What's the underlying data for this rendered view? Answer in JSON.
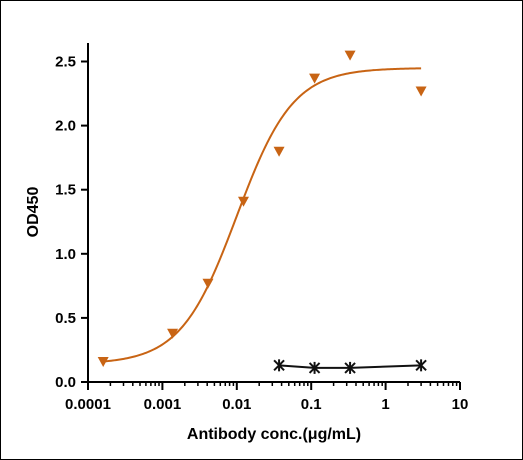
{
  "chart_data": {
    "type": "scatter",
    "xlabel": "Antibody conc.(μg/mL)",
    "ylabel": "OD450",
    "xscale": "log",
    "xlim": [
      0.0001,
      10
    ],
    "ylim": [
      0,
      2.7
    ],
    "xticks": [
      {
        "value": 0.0001,
        "label": "0.0001"
      },
      {
        "value": 0.001,
        "label": "0.001"
      },
      {
        "value": 0.01,
        "label": "0.01"
      },
      {
        "value": 0.1,
        "label": "0.1"
      },
      {
        "value": 1,
        "label": "1"
      },
      {
        "value": 10,
        "label": "10"
      }
    ],
    "yticks": [
      {
        "value": 0.0,
        "label": "0.0"
      },
      {
        "value": 0.5,
        "label": "0.5"
      },
      {
        "value": 1.0,
        "label": "1.0"
      },
      {
        "value": 1.5,
        "label": "1.5"
      },
      {
        "value": 2.0,
        "label": "2.0"
      },
      {
        "value": 2.5,
        "label": "2.5"
      }
    ],
    "grid": false,
    "series": [
      {
        "color": "#c86414",
        "marker": "triangle-down",
        "fit": "4PL",
        "fit_params": {
          "bottom": 0.14,
          "top": 2.45,
          "ec50": 0.01,
          "hill": 1.15
        },
        "x": [
          0.00016,
          0.00137,
          0.0041,
          0.0123,
          0.037,
          0.111,
          0.333,
          3.0
        ],
        "y": [
          0.16,
          0.38,
          0.77,
          1.41,
          1.8,
          2.37,
          2.55,
          2.27
        ]
      },
      {
        "color": "#111111",
        "marker": "asterisk",
        "connect": "line",
        "x": [
          0.037,
          0.111,
          0.333,
          3.0
        ],
        "y": [
          0.13,
          0.11,
          0.11,
          0.13
        ]
      }
    ]
  }
}
